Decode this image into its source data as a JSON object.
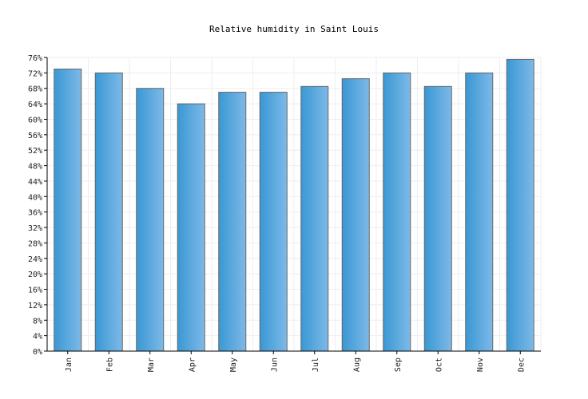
{
  "chart_data": {
    "type": "bar",
    "title": "Relative humidity in Saint Louis",
    "xlabel": "",
    "ylabel": "",
    "categories": [
      "Jan",
      "Feb",
      "Mar",
      "Apr",
      "May",
      "Jun",
      "Jul",
      "Aug",
      "Sep",
      "Oct",
      "Nov",
      "Dec"
    ],
    "values": [
      73,
      72,
      68,
      64,
      67,
      67,
      68.5,
      70.5,
      72,
      68.5,
      72,
      75.5
    ],
    "unit": "%",
    "ylim": [
      0,
      76
    ],
    "yticks": [
      0,
      4,
      8,
      12,
      16,
      20,
      24,
      28,
      32,
      36,
      40,
      44,
      48,
      52,
      56,
      60,
      64,
      68,
      72,
      76
    ],
    "ytick_labels": [
      "0%",
      "4%",
      "8%",
      "12%",
      "16%",
      "20%",
      "24%",
      "28%",
      "32%",
      "36%",
      "40%",
      "44%",
      "48%",
      "52%",
      "56%",
      "60%",
      "64%",
      "68%",
      "72%",
      "76%"
    ],
    "grid": true,
    "legend": "none",
    "colors": {
      "bar_dark": "#3a98d3",
      "bar_light": "#7db9e8",
      "bar_stroke": "#666666",
      "grid": "#eeeeee",
      "axis": "#000000"
    }
  }
}
